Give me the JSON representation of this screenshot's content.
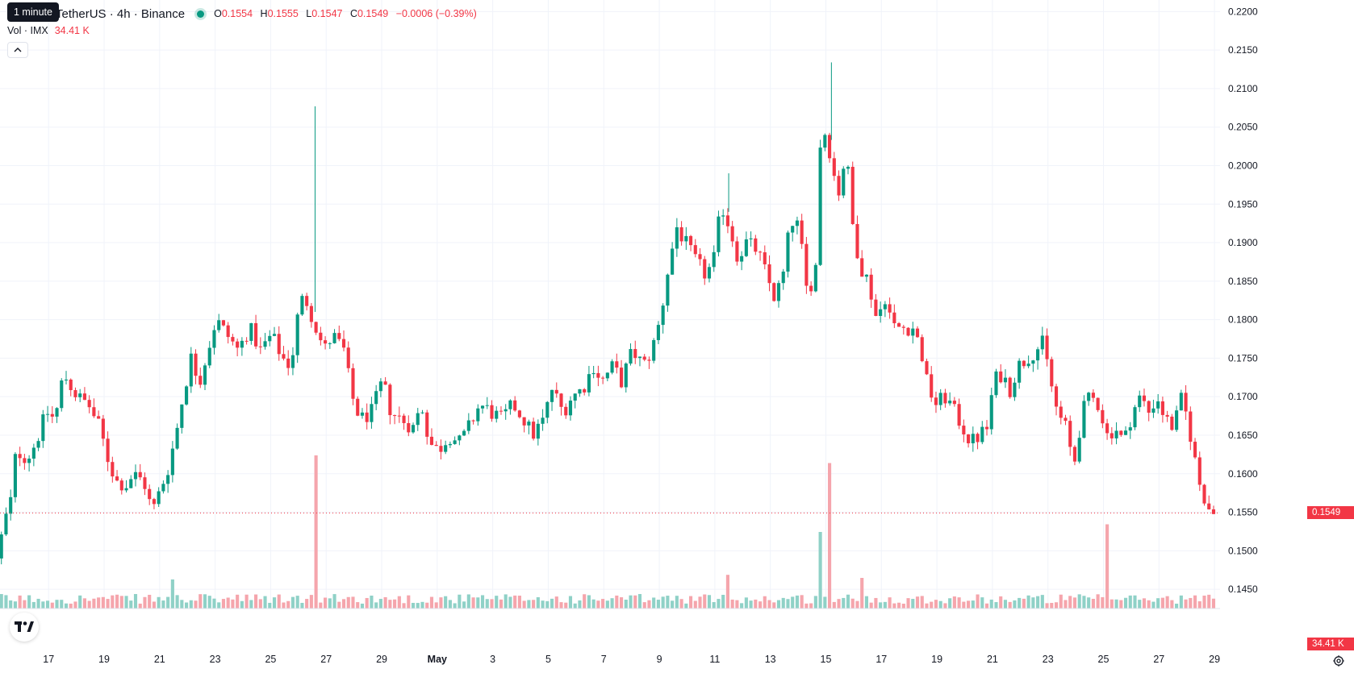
{
  "header": {
    "symbol_title": "TetherUS · 4h · Binance",
    "tooltip": "1 minute",
    "ohlc": {
      "o_label": "O",
      "o_value": "0.1554",
      "h_label": "H",
      "h_value": "0.1555",
      "l_label": "L",
      "l_value": "0.1547",
      "c_label": "C",
      "c_value": "0.1549",
      "change": "−0.0006 (−0.39%)"
    },
    "volume": {
      "label": "Vol · IMX",
      "value": "34.41 K"
    }
  },
  "badges": {
    "last_price": "0.1549",
    "last_volume": "34.41 K"
  },
  "colors": {
    "up": "#089981",
    "down": "#f23645",
    "up_volume": "#8fd1c7",
    "down_volume": "#f5a5ac",
    "grid": "#f0f3fa",
    "axis_text": "#131722"
  },
  "icons": {
    "logo": "tradingview-logo-icon",
    "settings": "gear-icon",
    "collapse": "chevron-up-icon"
  },
  "chart_data": {
    "type": "candlestick",
    "interval": "4h",
    "ylim": [
      0.1425,
      0.2215
    ],
    "y_ticks": [
      "0.2200",
      "0.2150",
      "0.2100",
      "0.2050",
      "0.2000",
      "0.1950",
      "0.1900",
      "0.1850",
      "0.1800",
      "0.1750",
      "0.1700",
      "0.1650",
      "0.1600",
      "0.1550",
      "0.1500",
      "0.1450"
    ],
    "x_ticks": [
      "17",
      "19",
      "21",
      "23",
      "25",
      "27",
      "29",
      "May",
      "3",
      "5",
      "7",
      "9",
      "11",
      "13",
      "15",
      "17",
      "19",
      "21",
      "23",
      "25",
      "27",
      "29"
    ],
    "x_tick_positions": [
      16,
      18,
      20,
      22,
      24,
      26,
      28,
      30,
      32,
      34,
      36,
      38,
      40,
      42,
      44,
      46,
      48,
      50,
      52,
      54,
      56,
      58
    ],
    "x_range": [
      14.25,
      58.2
    ],
    "last_price": 0.1549,
    "anchors": [
      [
        14.3,
        0.149
      ],
      [
        14.6,
        0.154
      ],
      [
        14.8,
        0.1565
      ],
      [
        15.0,
        0.163
      ],
      [
        15.4,
        0.162
      ],
      [
        15.7,
        0.164
      ],
      [
        16.1,
        0.168
      ],
      [
        16.4,
        0.167
      ],
      [
        16.7,
        0.173
      ],
      [
        17.2,
        0.17
      ],
      [
        17.6,
        0.169
      ],
      [
        18.0,
        0.166
      ],
      [
        18.3,
        0.162
      ],
      [
        18.6,
        0.159
      ],
      [
        19.0,
        0.1585
      ],
      [
        19.2,
        0.16
      ],
      [
        19.6,
        0.159
      ],
      [
        19.9,
        0.155
      ],
      [
        20.2,
        0.158
      ],
      [
        20.5,
        0.161
      ],
      [
        20.8,
        0.166
      ],
      [
        21.0,
        0.17
      ],
      [
        21.3,
        0.175
      ],
      [
        21.6,
        0.172
      ],
      [
        21.9,
        0.176
      ],
      [
        22.2,
        0.18
      ],
      [
        22.6,
        0.178
      ],
      [
        23.0,
        0.176
      ],
      [
        23.4,
        0.179
      ],
      [
        23.8,
        0.176
      ],
      [
        24.2,
        0.178
      ],
      [
        24.6,
        0.175
      ],
      [
        24.9,
        0.174
      ],
      [
        25.2,
        0.182
      ],
      [
        25.4,
        0.183
      ],
      [
        25.7,
        0.18
      ],
      [
        26.1,
        0.176
      ],
      [
        26.4,
        0.178
      ],
      [
        26.8,
        0.176
      ],
      [
        27.1,
        0.17
      ],
      [
        27.4,
        0.167
      ],
      [
        27.8,
        0.168
      ],
      [
        28.2,
        0.172
      ],
      [
        28.5,
        0.168
      ],
      [
        28.9,
        0.167
      ],
      [
        29.3,
        0.166
      ],
      [
        29.6,
        0.169
      ],
      [
        29.9,
        0.164
      ],
      [
        30.2,
        0.163
      ],
      [
        30.6,
        0.165
      ],
      [
        31.0,
        0.164
      ],
      [
        31.3,
        0.166
      ],
      [
        31.7,
        0.169
      ],
      [
        32.1,
        0.168
      ],
      [
        32.5,
        0.167
      ],
      [
        32.9,
        0.169
      ],
      [
        33.3,
        0.167
      ],
      [
        33.6,
        0.165
      ],
      [
        34.0,
        0.167
      ],
      [
        34.3,
        0.171
      ],
      [
        34.7,
        0.168
      ],
      [
        35.0,
        0.17
      ],
      [
        35.4,
        0.171
      ],
      [
        35.8,
        0.174
      ],
      [
        36.1,
        0.172
      ],
      [
        36.5,
        0.174
      ],
      [
        36.8,
        0.172
      ],
      [
        37.2,
        0.176
      ],
      [
        37.6,
        0.174
      ],
      [
        37.9,
        0.176
      ],
      [
        38.2,
        0.18
      ],
      [
        38.5,
        0.187
      ],
      [
        38.8,
        0.192
      ],
      [
        39.1,
        0.19
      ],
      [
        39.4,
        0.188
      ],
      [
        39.8,
        0.186
      ],
      [
        40.1,
        0.187
      ],
      [
        40.4,
        0.195
      ],
      [
        40.7,
        0.192
      ],
      [
        41.0,
        0.188
      ],
      [
        41.3,
        0.19
      ],
      [
        41.7,
        0.189
      ],
      [
        42.0,
        0.186
      ],
      [
        42.3,
        0.183
      ],
      [
        42.6,
        0.185
      ],
      [
        42.9,
        0.193
      ],
      [
        43.2,
        0.192
      ],
      [
        43.5,
        0.183
      ],
      [
        43.8,
        0.187
      ],
      [
        44.0,
        0.206
      ],
      [
        44.3,
        0.202
      ],
      [
        44.6,
        0.196
      ],
      [
        44.9,
        0.202
      ],
      [
        45.1,
        0.193
      ],
      [
        45.4,
        0.187
      ],
      [
        45.7,
        0.185
      ],
      [
        46.0,
        0.18
      ],
      [
        46.3,
        0.183
      ],
      [
        46.6,
        0.179
      ],
      [
        47.0,
        0.179
      ],
      [
        47.3,
        0.179
      ],
      [
        47.6,
        0.176
      ],
      [
        47.8,
        0.172
      ],
      [
        48.1,
        0.169
      ],
      [
        48.5,
        0.17
      ],
      [
        48.8,
        0.168
      ],
      [
        49.1,
        0.166
      ],
      [
        49.4,
        0.164
      ],
      [
        49.7,
        0.165
      ],
      [
        50.0,
        0.166
      ],
      [
        50.2,
        0.172
      ],
      [
        50.5,
        0.173
      ],
      [
        50.8,
        0.171
      ],
      [
        51.1,
        0.174
      ],
      [
        51.4,
        0.175
      ],
      [
        51.7,
        0.176
      ],
      [
        52.0,
        0.177
      ],
      [
        52.2,
        0.173
      ],
      [
        52.5,
        0.168
      ],
      [
        52.8,
        0.166
      ],
      [
        53.1,
        0.161
      ],
      [
        53.4,
        0.168
      ],
      [
        53.7,
        0.17
      ],
      [
        54.0,
        0.169
      ],
      [
        54.3,
        0.165
      ],
      [
        54.6,
        0.166
      ],
      [
        54.9,
        0.164
      ],
      [
        55.2,
        0.168
      ],
      [
        55.5,
        0.17
      ],
      [
        55.8,
        0.168
      ],
      [
        56.1,
        0.17
      ],
      [
        56.4,
        0.167
      ],
      [
        56.7,
        0.166
      ],
      [
        57.0,
        0.17
      ],
      [
        57.3,
        0.165
      ],
      [
        57.6,
        0.159
      ],
      [
        57.9,
        0.156
      ],
      [
        58.1,
        0.1549
      ]
    ],
    "volume_spikes": [
      [
        25.6,
        1.0
      ],
      [
        44.2,
        0.95
      ],
      [
        43.8,
        0.5
      ],
      [
        54.2,
        0.55
      ],
      [
        40.4,
        0.22
      ],
      [
        20.5,
        0.19
      ],
      [
        45.3,
        0.2
      ]
    ]
  }
}
